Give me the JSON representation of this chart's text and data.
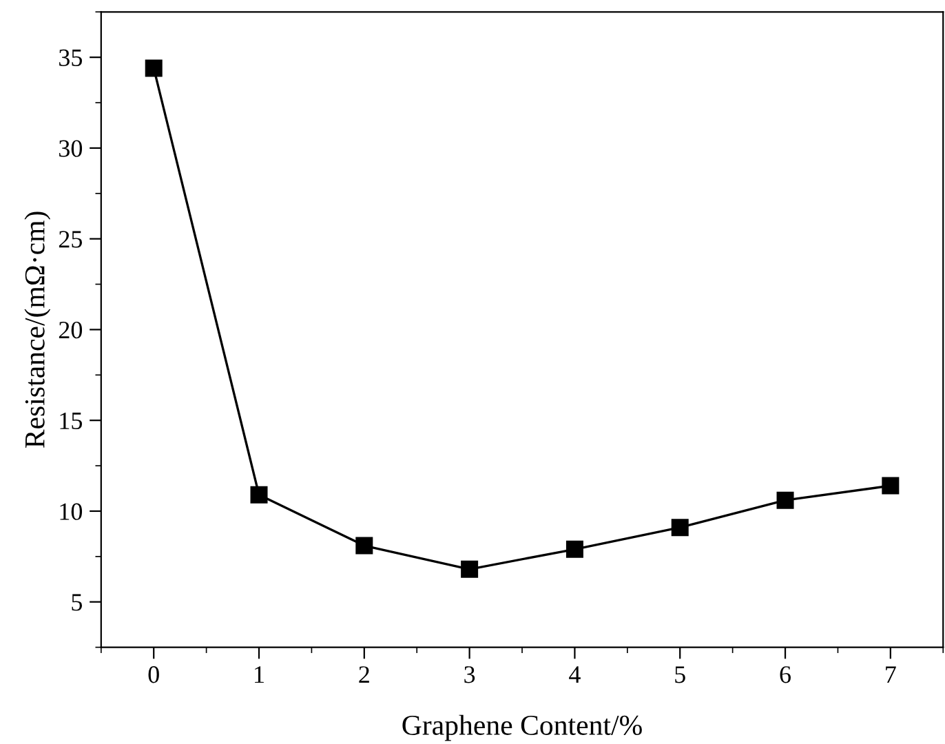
{
  "chart_data": {
    "type": "line",
    "xlabel": "Graphene Content/%",
    "ylabel": "Resistance/(mΩ·cm)",
    "x": [
      0,
      1,
      2,
      3,
      4,
      5,
      6,
      7
    ],
    "series": [
      {
        "color": "#000000",
        "values": [
          34.4,
          10.9,
          8.1,
          6.8,
          7.9,
          9.1,
          10.6,
          11.4
        ]
      }
    ],
    "xlim": [
      -0.5,
      7.5
    ],
    "xticks": [
      0,
      1,
      2,
      3,
      4,
      5,
      6,
      7
    ],
    "ylim": [
      2.5,
      37.5
    ],
    "yticks": [
      5,
      10,
      15,
      20,
      25,
      30,
      35
    ],
    "marker": "square",
    "line_style": "solid",
    "grid": false,
    "legend": false
  }
}
